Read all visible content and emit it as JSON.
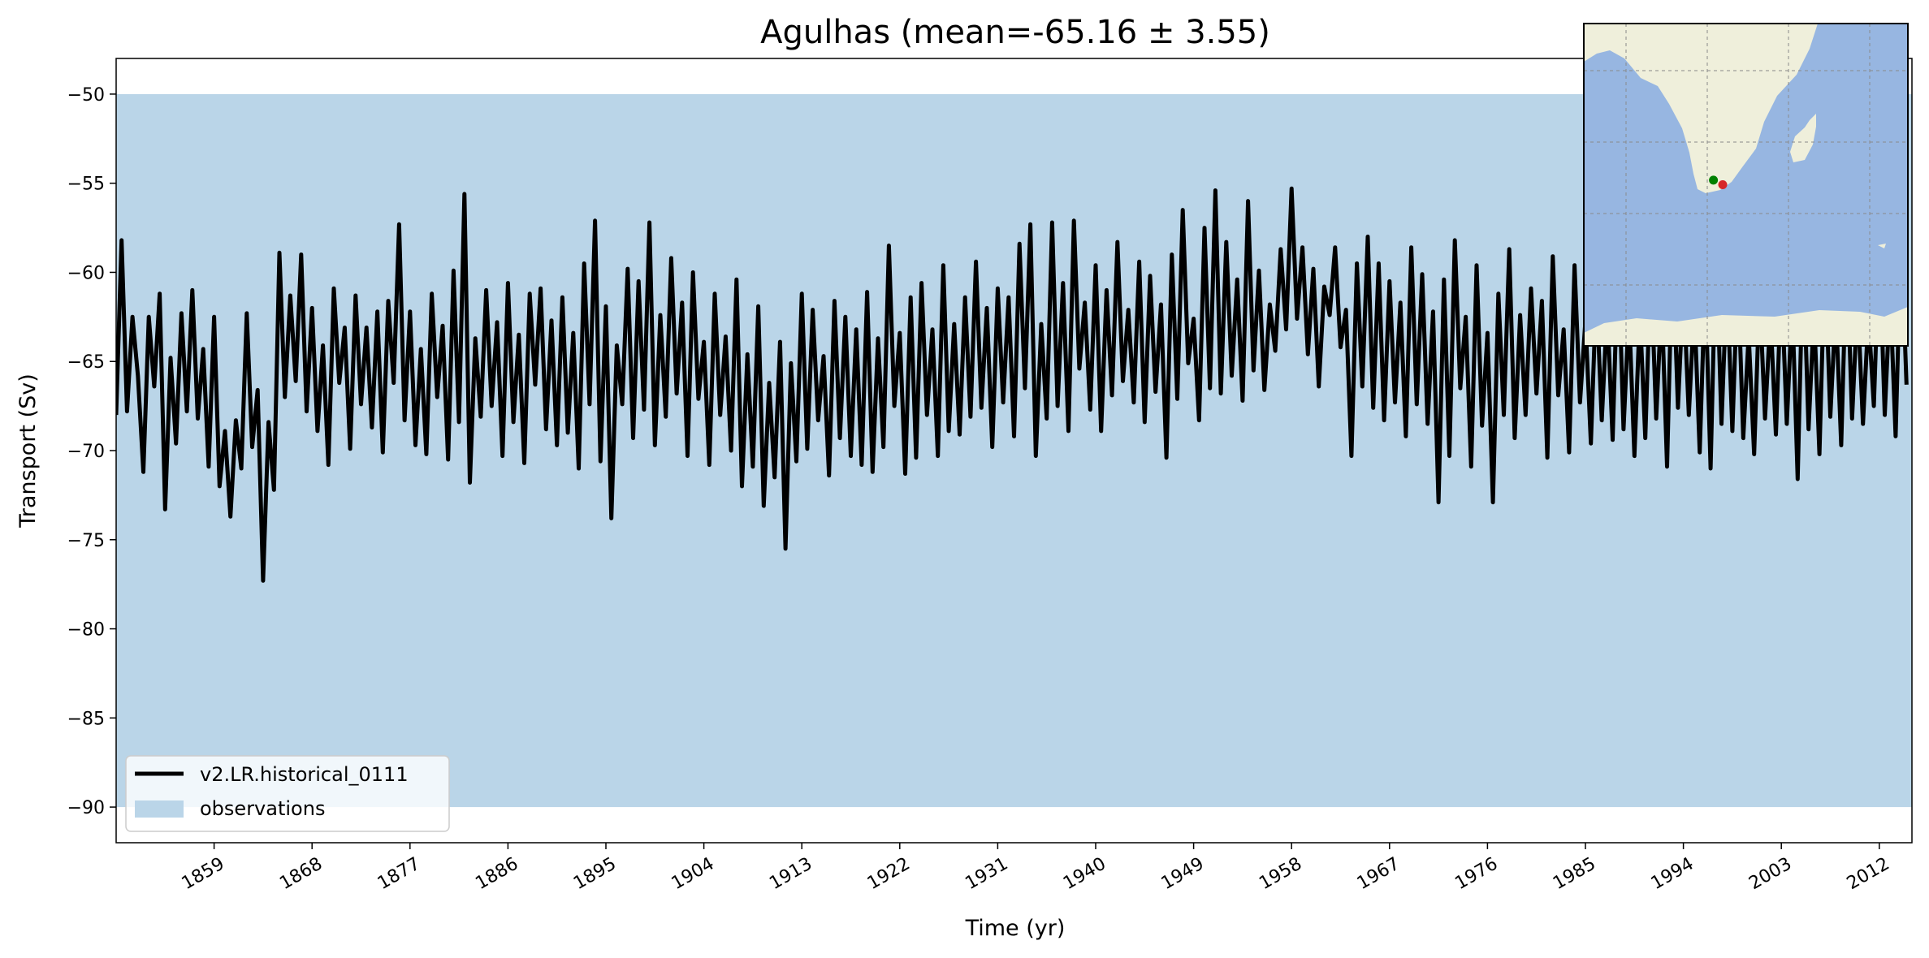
{
  "chart_data": {
    "type": "line",
    "title": "Agulhas (mean=-65.16 ± 3.55)",
    "xlabel": "Time (yr)",
    "ylabel": "Transport (Sv)",
    "xlim": [
      1850,
      2015
    ],
    "ylim": [
      -92,
      -48
    ],
    "xticks": [
      "1859",
      "1868",
      "1877",
      "1886",
      "1895",
      "1904",
      "1913",
      "1922",
      "1931",
      "1940",
      "1949",
      "1958",
      "1967",
      "1976",
      "1985",
      "1994",
      "2003",
      "2012"
    ],
    "yticks": [
      "−50",
      "−55",
      "−60",
      "−65",
      "−70",
      "−75",
      "−80",
      "−85",
      "−90"
    ],
    "legend": {
      "position": "lower-left",
      "entries": [
        "v2.LR.historical_0111",
        "observations"
      ]
    },
    "band": {
      "name": "observations",
      "y_low": -90,
      "y_high": -50,
      "color": "#bad5e8"
    },
    "series": [
      {
        "name": "v2.LR.historical_0111",
        "color": "#000000",
        "x": [
          1850.0,
          1850.5,
          1851.0,
          1851.5,
          1852.0,
          1852.5,
          1853.0,
          1853.5,
          1854.0,
          1854.5,
          1855.0,
          1855.5,
          1856.0,
          1856.5,
          1857.0,
          1857.5,
          1858.0,
          1858.5,
          1859.0,
          1859.5,
          1860.0,
          1860.5,
          1861.0,
          1861.5,
          1862.0,
          1862.5,
          1863.0,
          1863.5,
          1864.0,
          1864.5,
          1865.0,
          1865.5,
          1866.0,
          1866.5,
          1867.0,
          1867.5,
          1868.0,
          1868.5,
          1869.0,
          1869.5,
          1870.0,
          1870.5,
          1871.0,
          1871.5,
          1872.0,
          1872.5,
          1873.0,
          1873.5,
          1874.0,
          1874.5,
          1875.0,
          1875.5,
          1876.0,
          1876.5,
          1877.0,
          1877.5,
          1878.0,
          1878.5,
          1879.0,
          1879.5,
          1880.0,
          1880.5,
          1881.0,
          1881.5,
          1882.0,
          1882.5,
          1883.0,
          1883.5,
          1884.0,
          1884.5,
          1885.0,
          1885.5,
          1886.0,
          1886.5,
          1887.0,
          1887.5,
          1888.0,
          1888.5,
          1889.0,
          1889.5,
          1890.0,
          1890.5,
          1891.0,
          1891.5,
          1892.0,
          1892.5,
          1893.0,
          1893.5,
          1894.0,
          1894.5,
          1895.0,
          1895.5,
          1896.0,
          1896.5,
          1897.0,
          1897.5,
          1898.0,
          1898.5,
          1899.0,
          1899.5,
          1900.0,
          1900.5,
          1901.0,
          1901.5,
          1902.0,
          1902.5,
          1903.0,
          1903.5,
          1904.0,
          1904.5,
          1905.0,
          1905.5,
          1906.0,
          1906.5,
          1907.0,
          1907.5,
          1908.0,
          1908.5,
          1909.0,
          1909.5,
          1910.0,
          1910.5,
          1911.0,
          1911.5,
          1912.0,
          1912.5,
          1913.0,
          1913.5,
          1914.0,
          1914.5,
          1915.0,
          1915.5,
          1916.0,
          1916.5,
          1917.0,
          1917.5,
          1918.0,
          1918.5,
          1919.0,
          1919.5,
          1920.0,
          1920.5,
          1921.0,
          1921.5,
          1922.0,
          1922.5,
          1923.0,
          1923.5,
          1924.0,
          1924.5,
          1925.0,
          1925.5,
          1926.0,
          1926.5,
          1927.0,
          1927.5,
          1928.0,
          1928.5,
          1929.0,
          1929.5,
          1930.0,
          1930.5,
          1931.0,
          1931.5,
          1932.0,
          1932.5,
          1933.0,
          1933.5,
          1934.0,
          1934.5,
          1935.0,
          1935.5,
          1936.0,
          1936.5,
          1937.0,
          1937.5,
          1938.0,
          1938.5,
          1939.0,
          1939.5,
          1940.0,
          1940.5,
          1941.0,
          1941.5,
          1942.0,
          1942.5,
          1943.0,
          1943.5,
          1944.0,
          1944.5,
          1945.0,
          1945.5,
          1946.0,
          1946.5,
          1947.0,
          1947.5,
          1948.0,
          1948.5,
          1949.0,
          1949.5,
          1950.0,
          1950.5,
          1951.0,
          1951.5,
          1952.0,
          1952.5,
          1953.0,
          1953.5,
          1954.0,
          1954.5,
          1955.0,
          1955.5,
          1956.0,
          1956.5,
          1957.0,
          1957.5,
          1958.0,
          1958.5,
          1959.0,
          1959.5,
          1960.0,
          1960.5,
          1961.0,
          1961.5,
          1962.0,
          1962.5,
          1963.0,
          1963.5,
          1964.0,
          1964.5,
          1965.0,
          1965.5,
          1966.0,
          1966.5,
          1967.0,
          1967.5,
          1968.0,
          1968.5,
          1969.0,
          1969.5,
          1970.0,
          1970.5,
          1971.0,
          1971.5,
          1972.0,
          1972.5,
          1973.0,
          1973.5,
          1974.0,
          1974.5,
          1975.0,
          1975.5,
          1976.0,
          1976.5,
          1977.0,
          1977.5,
          1978.0,
          1978.5,
          1979.0,
          1979.5,
          1980.0,
          1980.5,
          1981.0,
          1981.5,
          1982.0,
          1982.5,
          1983.0,
          1983.5,
          1984.0,
          1984.5,
          1985.0,
          1985.5,
          1986.0,
          1986.5,
          1987.0,
          1987.5,
          1988.0,
          1988.5,
          1989.0,
          1989.5,
          1990.0,
          1990.5,
          1991.0,
          1991.5,
          1992.0,
          1992.5,
          1993.0,
          1993.5,
          1994.0,
          1994.5,
          1995.0,
          1995.5,
          1996.0,
          1996.5,
          1997.0,
          1997.5,
          1998.0,
          1998.5,
          1999.0,
          1999.5,
          2000.0,
          2000.5,
          2001.0,
          2001.5,
          2002.0,
          2002.5,
          2003.0,
          2003.5,
          2004.0,
          2004.5,
          2005.0,
          2005.5,
          2006.0,
          2006.5,
          2007.0,
          2007.5,
          2008.0,
          2008.5,
          2009.0,
          2009.5,
          2010.0,
          2010.5,
          2011.0,
          2011.5,
          2012.0,
          2012.5,
          2013.0,
          2013.5,
          2014.0,
          2014.5
        ],
        "y": [
          -68.0,
          -58.2,
          -67.8,
          -62.5,
          -65.8,
          -71.2,
          -62.5,
          -66.4,
          -61.2,
          -73.3,
          -64.8,
          -69.6,
          -62.3,
          -67.8,
          -61.0,
          -68.2,
          -64.3,
          -70.9,
          -62.5,
          -72.0,
          -68.9,
          -73.7,
          -68.3,
          -71.0,
          -62.3,
          -69.8,
          -66.6,
          -77.3,
          -68.4,
          -72.2,
          -58.9,
          -67.0,
          -61.3,
          -66.1,
          -59.0,
          -67.8,
          -62.0,
          -68.9,
          -64.1,
          -70.8,
          -60.9,
          -66.2,
          -63.1,
          -69.9,
          -61.3,
          -67.4,
          -63.1,
          -68.7,
          -62.2,
          -70.1,
          -61.6,
          -66.2,
          -57.3,
          -68.3,
          -62.2,
          -69.7,
          -64.3,
          -70.2,
          -61.2,
          -67.0,
          -63.0,
          -70.5,
          -59.9,
          -68.4,
          -55.6,
          -71.8,
          -63.7,
          -68.1,
          -61.0,
          -67.5,
          -62.8,
          -70.3,
          -60.6,
          -68.4,
          -63.5,
          -70.7,
          -61.2,
          -66.3,
          -60.9,
          -68.8,
          -62.7,
          -69.7,
          -61.4,
          -69.0,
          -63.4,
          -71.0,
          -59.5,
          -67.4,
          -57.1,
          -70.6,
          -61.9,
          -73.8,
          -64.1,
          -67.4,
          -59.8,
          -69.3,
          -60.5,
          -67.7,
          -57.2,
          -69.7,
          -62.4,
          -68.1,
          -59.2,
          -66.8,
          -61.7,
          -70.3,
          -60.0,
          -67.1,
          -63.9,
          -70.8,
          -61.2,
          -68.0,
          -63.6,
          -70.0,
          -60.4,
          -72.0,
          -64.6,
          -70.9,
          -61.9,
          -73.1,
          -66.2,
          -71.5,
          -63.9,
          -75.5,
          -65.1,
          -70.6,
          -61.2,
          -69.9,
          -62.1,
          -68.3,
          -64.7,
          -71.4,
          -61.6,
          -69.3,
          -62.5,
          -70.3,
          -63.2,
          -70.8,
          -61.1,
          -71.2,
          -63.7,
          -69.8,
          -58.5,
          -67.5,
          -63.4,
          -71.3,
          -61.4,
          -70.4,
          -60.6,
          -68.0,
          -63.2,
          -70.3,
          -59.6,
          -68.9,
          -62.9,
          -69.1,
          -61.4,
          -68.1,
          -59.4,
          -67.6,
          -62.0,
          -69.8,
          -60.9,
          -67.3,
          -61.4,
          -69.2,
          -58.4,
          -66.5,
          -57.3,
          -70.3,
          -62.9,
          -68.2,
          -57.2,
          -67.5,
          -60.6,
          -68.9,
          -57.1,
          -65.4,
          -61.7,
          -67.7,
          -59.6,
          -68.9,
          -61.0,
          -66.9,
          -58.3,
          -66.1,
          -62.1,
          -67.3,
          -59.4,
          -68.4,
          -60.2,
          -66.7,
          -61.8,
          -70.4,
          -59.0,
          -67.1,
          -56.5,
          -65.1,
          -62.6,
          -68.3,
          -57.5,
          -66.5,
          -55.4,
          -66.8,
          -58.3,
          -65.8,
          -60.4,
          -67.2,
          -56.0,
          -65.5,
          -59.9,
          -66.6,
          -61.8,
          -64.4,
          -58.7,
          -63.2,
          -55.3,
          -62.6,
          -58.6,
          -64.6,
          -59.8,
          -66.4,
          -60.8,
          -62.4,
          -58.6,
          -64.2,
          -62.1,
          -70.3,
          -59.5,
          -66.4,
          -58.0,
          -67.6,
          -59.5,
          -68.3,
          -60.5,
          -67.3,
          -61.7,
          -69.2,
          -58.6,
          -67.4,
          -60.1,
          -68.5,
          -62.2,
          -72.9,
          -60.4,
          -70.3,
          -58.2,
          -66.5,
          -62.5,
          -70.9,
          -59.6,
          -68.6,
          -63.4,
          -72.9,
          -61.2,
          -68.0,
          -58.7,
          -69.3,
          -62.4,
          -68.0,
          -60.9,
          -66.8,
          -61.6,
          -70.4,
          -59.1,
          -66.9,
          -63.2,
          -70.1,
          -59.6,
          -67.3,
          -62.7,
          -69.6,
          -60.9,
          -68.3,
          -62.0,
          -69.4,
          -58.9,
          -68.8,
          -62.1,
          -70.3,
          -62.2,
          -69.3,
          -59.6,
          -68.2,
          -61.5,
          -70.9,
          -58.5,
          -67.6,
          -60.8,
          -68.0,
          -61.8,
          -70.1,
          -60.5,
          -71.0,
          -58.3,
          -68.5,
          -60.4,
          -68.9,
          -59.9,
          -69.3,
          -63.5,
          -70.2,
          -61.1,
          -68.2,
          -62.4,
          -69.1,
          -60.4,
          -68.5,
          -61.7,
          -71.6,
          -58.9,
          -68.8,
          -62.2,
          -70.2,
          -59.1,
          -68.1,
          -61.9,
          -69.7,
          -58.8,
          -68.2,
          -61.5,
          -68.5,
          -62.4,
          -67.5,
          -58.3,
          -68.0,
          -61.2,
          -69.2,
          -57.8,
          -66.3
        ]
      }
    ],
    "inset_map": {
      "region": "Southern Africa and adjacent oceans",
      "ocean_color": "#97b6e1",
      "land_color": "#efefdb",
      "points": [
        {
          "color": "#008000",
          "lon": 18.0,
          "lat": -34.0
        },
        {
          "color": "#d62728",
          "lon": 20.0,
          "lat": -35.0
        }
      ]
    }
  }
}
